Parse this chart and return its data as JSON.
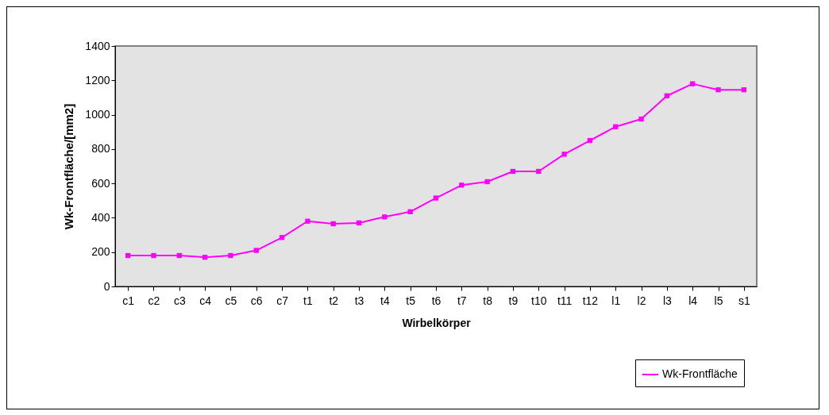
{
  "chart_data": {
    "type": "line",
    "xlabel": "Wirbelkörper",
    "ylabel": "Wk-Frontfläche/[mm2]",
    "categories": [
      "c1",
      "c2",
      "c3",
      "c4",
      "c5",
      "c6",
      "c7",
      "t1",
      "t2",
      "t3",
      "t4",
      "t5",
      "t6",
      "t7",
      "t8",
      "t9",
      "t10",
      "t11",
      "t12",
      "l1",
      "l2",
      "l3",
      "l4",
      "l5",
      "s1"
    ],
    "series": [
      {
        "name": "Wk-Frontfläche",
        "color": "#ff00ff",
        "values": [
          180,
          180,
          180,
          170,
          180,
          210,
          285,
          380,
          365,
          370,
          405,
          435,
          515,
          590,
          610,
          670,
          670,
          770,
          850,
          930,
          975,
          1110,
          1180,
          1145,
          1145
        ]
      }
    ],
    "ylim": [
      0,
      1400
    ],
    "yticks": [
      0,
      200,
      400,
      600,
      800,
      1000,
      1200,
      1400
    ],
    "grid": false,
    "legend": "bottom right",
    "marker": "square",
    "line_style": "solid"
  }
}
